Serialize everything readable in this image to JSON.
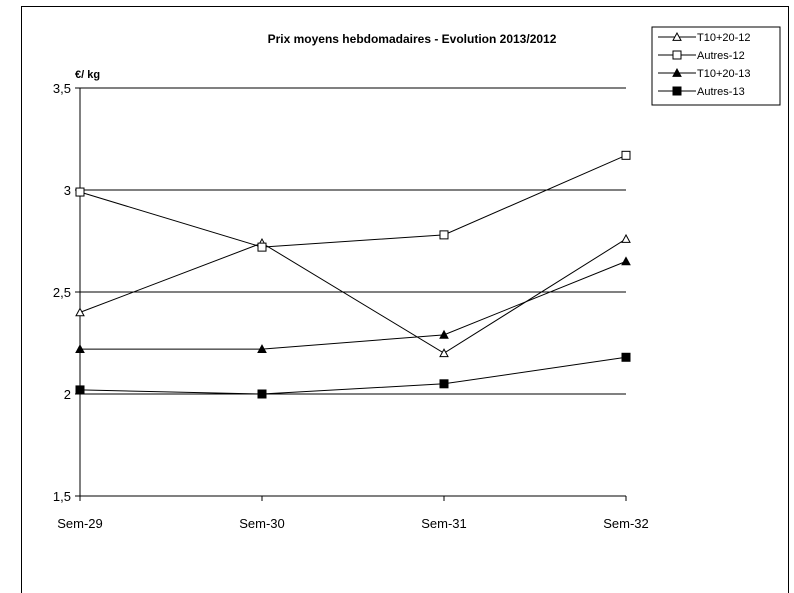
{
  "chart_data": {
    "type": "line",
    "title": "Prix moyens hebdomadaires - Evolution  2013/2012",
    "ylabel": "€/ kg",
    "xlabel": "",
    "categories": [
      "Sem-29",
      "Sem-30",
      "Sem-31",
      "Sem-32"
    ],
    "ylim": [
      1.5,
      3.5
    ],
    "yticks": [
      1.5,
      2,
      2.5,
      3,
      3.5
    ],
    "ytick_labels": [
      "1,5",
      "2",
      "2,5",
      "3",
      "3,5"
    ],
    "grid": "horizontal",
    "legend_position": "top-right",
    "series": [
      {
        "name": "T10+20-12",
        "marker": "triangle-open",
        "values": [
          2.4,
          2.74,
          2.2,
          2.76
        ]
      },
      {
        "name": "Autres-12",
        "marker": "square-open",
        "values": [
          2.99,
          2.72,
          2.78,
          3.17
        ]
      },
      {
        "name": "T10+20-13",
        "marker": "triangle-filled",
        "values": [
          2.22,
          2.22,
          2.29,
          2.65
        ]
      },
      {
        "name": "Autres-13",
        "marker": "square-filled",
        "values": [
          2.02,
          2.0,
          2.05,
          2.18
        ]
      }
    ]
  }
}
